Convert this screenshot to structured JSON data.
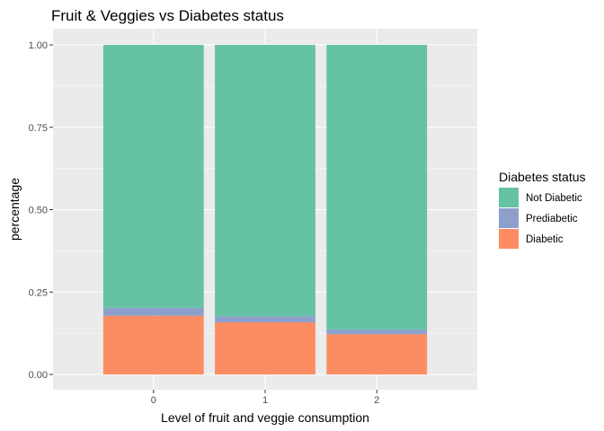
{
  "chart_data": {
    "type": "bar",
    "stacked": true,
    "title": "Fruit & Veggies vs Diabetes status",
    "xlabel": "Level of fruit and veggie consumption",
    "ylabel": "percentage",
    "categories": [
      "0",
      "1",
      "2"
    ],
    "ylim": [
      0,
      1
    ],
    "yticks": [
      "0.00",
      "0.25",
      "0.50",
      "0.75",
      "1.00"
    ],
    "grid": true,
    "legend_position": "right",
    "legend_title": "Diabetes status",
    "legend_entries": [
      "Not Diabetic",
      "Prediabetic",
      "Diabetic"
    ],
    "series": [
      {
        "name": "Diabetic",
        "values": [
          0.178,
          0.158,
          0.122
        ],
        "color": "#FC8D62"
      },
      {
        "name": "Prediabetic",
        "values": [
          0.024,
          0.018,
          0.014
        ],
        "color": "#8DA0CB"
      },
      {
        "name": "Not Diabetic",
        "values": [
          0.798,
          0.824,
          0.864
        ],
        "color": "#66C2A5"
      }
    ],
    "panel_color": "#EBEBEB",
    "grid_color": "#FFFFFF"
  }
}
